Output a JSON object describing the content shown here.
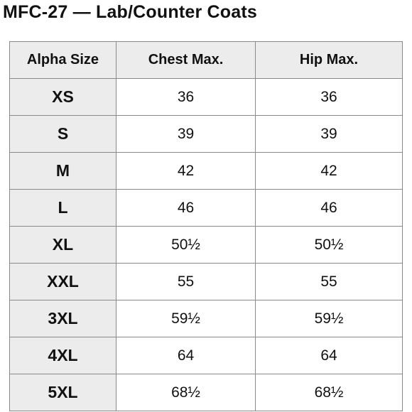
{
  "title": "MFC-27 — Lab/Counter Coats",
  "table": {
    "headers": [
      "Alpha Size",
      "Chest Max.",
      "Hip Max."
    ],
    "rows": [
      {
        "size": "XS",
        "chest": "36",
        "hip": "36"
      },
      {
        "size": "S",
        "chest": "39",
        "hip": "39"
      },
      {
        "size": "M",
        "chest": "42",
        "hip": "42"
      },
      {
        "size": "L",
        "chest": "46",
        "hip": "46"
      },
      {
        "size": "XL",
        "chest": "50½",
        "hip": "50½"
      },
      {
        "size": "XXL",
        "chest": "55",
        "hip": "55"
      },
      {
        "size": "3XL",
        "chest": "59½",
        "hip": "59½"
      },
      {
        "size": "4XL",
        "chest": "64",
        "hip": "64"
      },
      {
        "size": "5XL",
        "chest": "68½",
        "hip": "68½"
      }
    ]
  },
  "colors": {
    "header_bg": "#ececec",
    "border": "#8a8a8a",
    "text": "#111111"
  }
}
